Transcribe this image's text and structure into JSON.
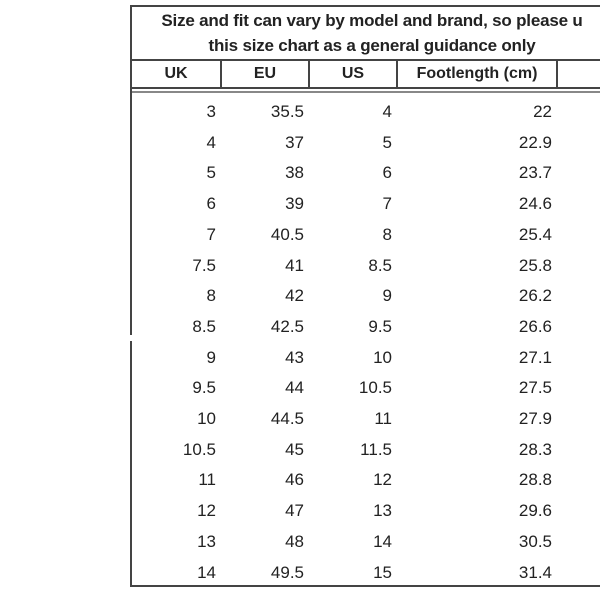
{
  "title_lines": [
    "Size and fit can vary by model and brand, so please u",
    "this size chart as a general guidance only"
  ],
  "columns": [
    "UK",
    "EU",
    "US",
    "Footlength (cm)",
    ""
  ],
  "rows": [
    [
      "3",
      "35.5",
      "4",
      "22"
    ],
    [
      "4",
      "37",
      "5",
      "22.9"
    ],
    [
      "5",
      "38",
      "6",
      "23.7"
    ],
    [
      "6",
      "39",
      "7",
      "24.6"
    ],
    [
      "7",
      "40.5",
      "8",
      "25.4"
    ],
    [
      "7.5",
      "41",
      "8.5",
      "25.8"
    ],
    [
      "8",
      "42",
      "9",
      "26.2"
    ],
    [
      "8.5",
      "42.5",
      "9.5",
      "26.6"
    ],
    [
      "9",
      "43",
      "10",
      "27.1"
    ],
    [
      "9.5",
      "44",
      "10.5",
      "27.5"
    ],
    [
      "10",
      "44.5",
      "11",
      "27.9"
    ],
    [
      "10.5",
      "45",
      "11.5",
      "28.3"
    ],
    [
      "11",
      "46",
      "12",
      "28.8"
    ],
    [
      "12",
      "47",
      "13",
      "29.6"
    ],
    [
      "13",
      "48",
      "14",
      "30.5"
    ],
    [
      "14",
      "49.5",
      "15",
      "31.4"
    ]
  ]
}
